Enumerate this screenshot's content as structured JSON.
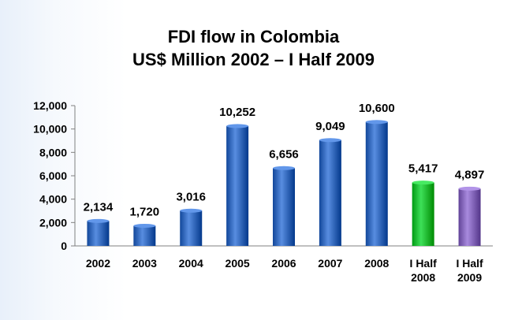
{
  "chart_data": {
    "type": "bar",
    "title": "FDI flow in Colombia",
    "subtitle": "US$ Million 2002 – I Half 2009",
    "categories": [
      [
        "2002"
      ],
      [
        "2003"
      ],
      [
        "2004"
      ],
      [
        "2005"
      ],
      [
        "2006"
      ],
      [
        "2007"
      ],
      [
        "2008"
      ],
      [
        "I Half",
        "2008"
      ],
      [
        "I Half",
        "2009"
      ]
    ],
    "values": [
      2134,
      1720,
      3016,
      10252,
      6656,
      9049,
      10600,
      5417,
      4897
    ],
    "data_labels": [
      "2,134",
      "1,720",
      "3,016",
      "10,252",
      "6,656",
      "9,049",
      "10,600",
      "5,417",
      "4,897"
    ],
    "yticks": [
      "0",
      "2,000",
      "4,000",
      "6,000",
      "8,000",
      "10,000",
      "12,000"
    ],
    "ylim": [
      0,
      12000
    ],
    "xlabel": "",
    "ylabel": "",
    "grid": false,
    "legend": "none",
    "colors": [
      "#3a6fc2",
      "#3a6fc2",
      "#3a6fc2",
      "#3a6fc2",
      "#3a6fc2",
      "#3a6fc2",
      "#3a6fc2",
      "#1fc23a",
      "#8a6cc0"
    ]
  }
}
